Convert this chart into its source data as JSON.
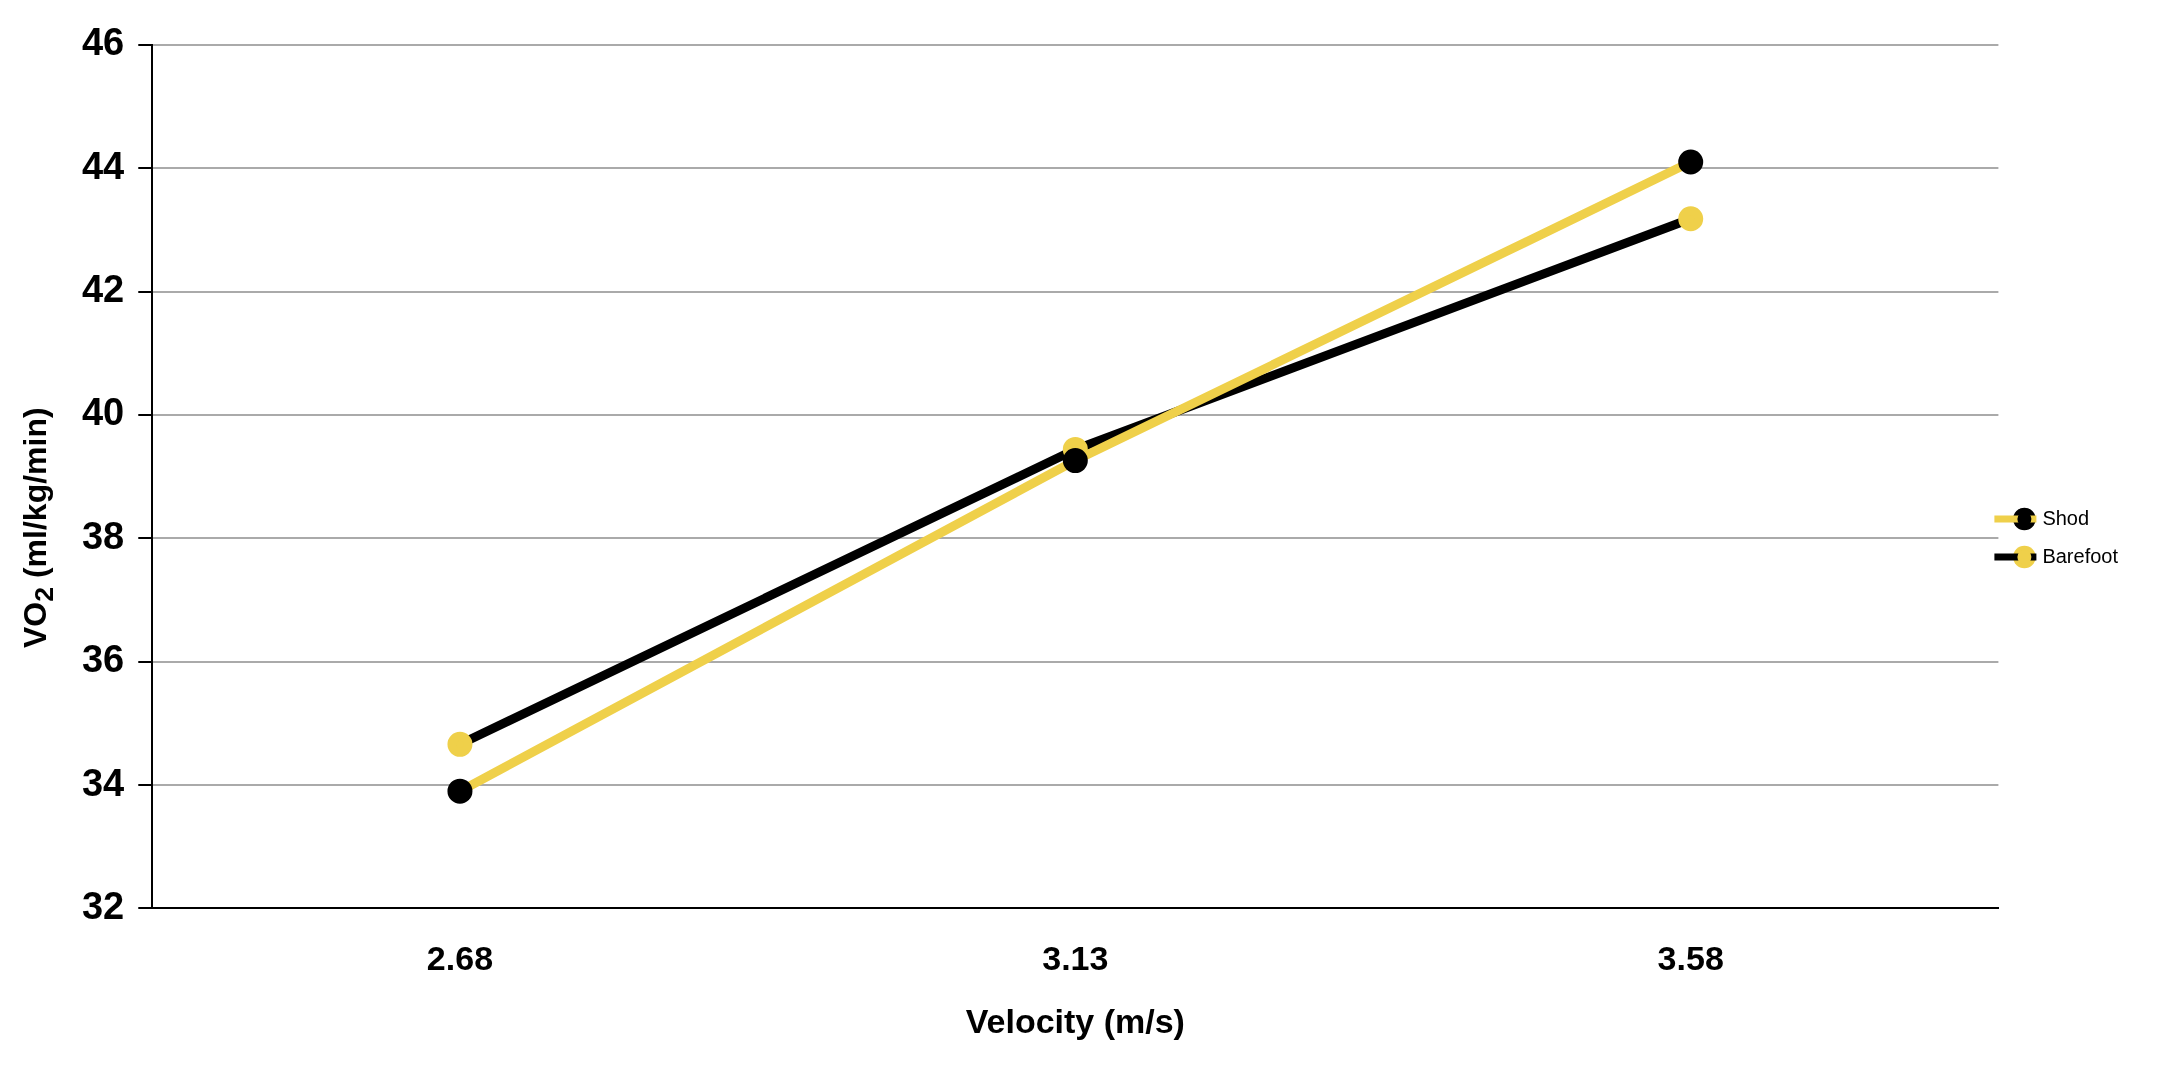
{
  "chart_data": {
    "type": "line",
    "xlabel": "Velocity (m/s)",
    "ylabel": "VO$_{2}$  (ml/kg/min)",
    "categories": [
      "2.68",
      "3.13",
      "3.58"
    ],
    "series": [
      {
        "name": "Shod",
        "color": "#efd04a",
        "colors": [
          "#000000",
          "#000000",
          "#000000"
        ],
        "values": [
          33.9,
          39.26,
          44.1
        ]
      },
      {
        "name": "Barefoot",
        "color": "#000000",
        "colors": [
          "#efd04a",
          "#efd04a",
          "#efd04a"
        ],
        "values": [
          34.66,
          39.44,
          43.18
        ]
      }
    ],
    "ylim": [
      32,
      46
    ],
    "yticks": [
      32,
      34,
      36,
      38,
      40,
      42,
      44,
      46
    ],
    "grid": "y",
    "legend": "right",
    "marker": "circle",
    "line_style": "solid"
  }
}
